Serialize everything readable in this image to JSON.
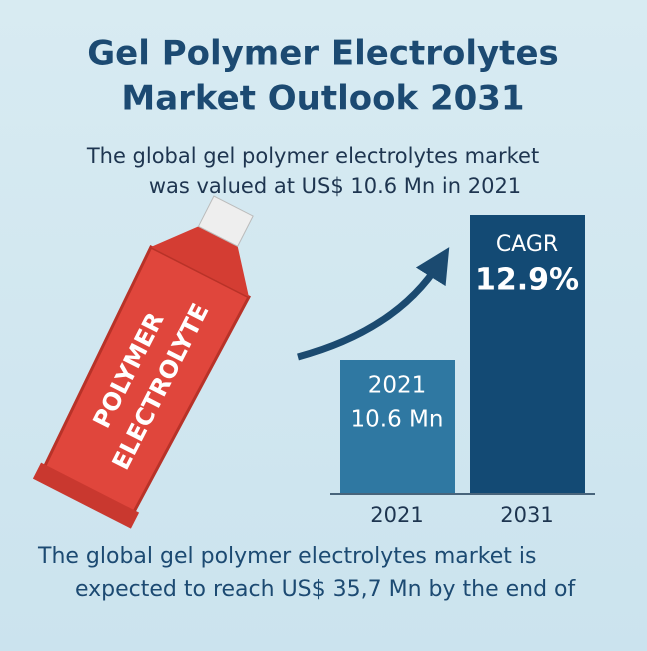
{
  "title": {
    "line1": "Gel Polymer Electrolytes",
    "line2": "Market Outlook 2031"
  },
  "intro": {
    "line1": "The global gel polymer electrolytes market",
    "line2": "was valued at US$ 10.6 Mn in 2021"
  },
  "tube": {
    "line1": "POLYMER",
    "line2": "ELECTROLYTE"
  },
  "bars": [
    {
      "inner_label": "2021",
      "value_label": "10.6 Mn",
      "axis_label": "2021"
    },
    {
      "inner_label": "CAGR",
      "value_label": "12.9%",
      "axis_label": "2031"
    }
  ],
  "footer": {
    "line1": "The global gel polymer electrolytes market is",
    "line2": "expected to reach US$ 35,7 Mn by the end of"
  }
}
